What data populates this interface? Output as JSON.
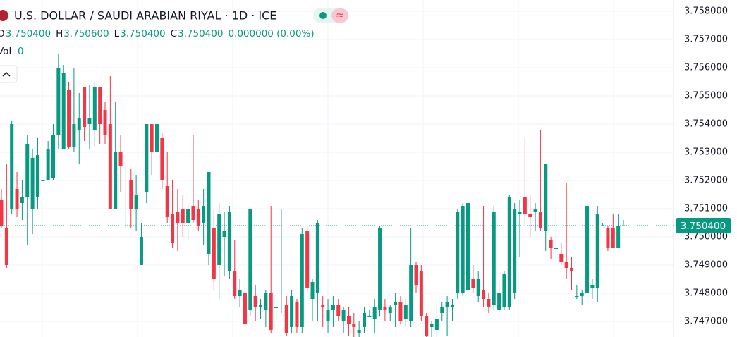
{
  "chart_data": {
    "type": "candlestick",
    "title": "U.S. DOLLAR / SAUDI ARABIAN RIYAL · 1D · ICE",
    "legend": {
      "o_label": "O",
      "open": "3.750400",
      "h_label": "H",
      "high": "3.750600",
      "l_label": "L",
      "low": "3.750400",
      "c_label": "C",
      "close": "3.750400",
      "change": "0.000000 (0.00%)",
      "vol_label": "Vol",
      "vol": "0"
    },
    "up_color": "#089981",
    "down_color": "#f23645",
    "grid": true,
    "price_label": {
      "value": 3.7504,
      "label": "3.750400"
    },
    "ylim": [
      3.7466,
      3.7584
    ],
    "yticks": [
      {
        "value": 3.747,
        "label": "3.747000"
      },
      {
        "value": 3.748,
        "label": "3.748000"
      },
      {
        "value": 3.749,
        "label": "3.749000"
      },
      {
        "value": 3.75,
        "label": "3.750000"
      },
      {
        "value": 3.751,
        "label": "3.751000"
      },
      {
        "value": 3.752,
        "label": "3.752000"
      },
      {
        "value": 3.753,
        "label": "3.753000"
      },
      {
        "value": 3.754,
        "label": "3.754000"
      },
      {
        "value": 3.755,
        "label": "3.755000"
      },
      {
        "value": 3.756,
        "label": "3.756000"
      },
      {
        "value": 3.757,
        "label": "3.757000"
      },
      {
        "value": 3.758,
        "label": "3.758000"
      }
    ],
    "candles": [
      [
        3.7513,
        3.7517,
        3.7503,
        3.7504
      ],
      [
        3.7503,
        3.7526,
        3.7489,
        3.749
      ],
      [
        3.751,
        3.7541,
        3.7508,
        3.754
      ],
      [
        3.7517,
        3.7523,
        3.7507,
        3.751
      ],
      [
        3.7512,
        3.752,
        3.7506,
        3.7514
      ],
      [
        3.7514,
        3.7536,
        3.7497,
        3.7533
      ],
      [
        3.751,
        3.7531,
        3.7501,
        3.7528
      ],
      [
        3.7514,
        3.7535,
        3.751,
        3.7529
      ],
      [
        3.752,
        3.752,
        3.752,
        3.752
      ],
      [
        3.752,
        3.7534,
        3.752,
        3.7531
      ],
      [
        3.7521,
        3.754,
        3.752,
        3.7536
      ],
      [
        3.7536,
        3.7565,
        3.7531,
        3.756
      ],
      [
        3.7531,
        3.7561,
        3.7531,
        3.7558
      ],
      [
        3.7552,
        3.7555,
        3.7531,
        3.7532
      ],
      [
        3.7532,
        3.756,
        3.753,
        3.754
      ],
      [
        3.7538,
        3.7551,
        3.7526,
        3.7542
      ],
      [
        3.7553,
        3.7553,
        3.7534,
        3.7539
      ],
      [
        3.754,
        3.7554,
        3.7531,
        3.7542
      ],
      [
        3.7538,
        3.7555,
        3.7532,
        3.7553
      ],
      [
        3.7553,
        3.7553,
        3.7533,
        3.754
      ],
      [
        3.7545,
        3.7548,
        3.7533,
        3.7536
      ],
      [
        3.754,
        3.7557,
        3.751,
        3.751
      ],
      [
        3.751,
        3.7548,
        3.751,
        3.753
      ],
      [
        3.753,
        3.7536,
        3.7516,
        3.7525
      ],
      [
        3.751,
        3.7525,
        3.7503,
        3.751
      ],
      [
        3.752,
        3.7524,
        3.7503,
        3.751
      ],
      [
        3.751,
        3.7522,
        3.7502,
        3.7515
      ],
      [
        3.749,
        3.7505,
        3.749,
        3.75
      ],
      [
        3.7516,
        3.754,
        3.7512,
        3.754
      ],
      [
        3.754,
        3.754,
        3.7522,
        3.753
      ],
      [
        3.753,
        3.754,
        3.751,
        3.754
      ],
      [
        3.7535,
        3.7537,
        3.7517,
        3.752
      ],
      [
        3.7518,
        3.753,
        3.7505,
        3.7507
      ],
      [
        3.7508,
        3.752,
        3.7496,
        3.7498
      ],
      [
        3.7509,
        3.7517,
        3.7495,
        3.7505
      ],
      [
        3.751,
        3.7515,
        3.75,
        3.7505
      ],
      [
        3.7505,
        3.7512,
        3.7499,
        3.751
      ],
      [
        3.7511,
        3.7536,
        3.7505,
        3.7506
      ],
      [
        3.751,
        3.7513,
        3.7502,
        3.7504
      ],
      [
        3.7505,
        3.7517,
        3.7497,
        3.7511
      ],
      [
        3.7494,
        3.7523,
        3.749,
        3.7523
      ],
      [
        3.7503,
        3.751,
        3.7481,
        3.7485
      ],
      [
        3.749,
        3.7512,
        3.7478,
        3.7508
      ],
      [
        3.75,
        3.7509,
        3.7486,
        3.7502
      ],
      [
        3.7488,
        3.7511,
        3.7485,
        3.7509
      ],
      [
        3.7488,
        3.7499,
        3.7478,
        3.7479
      ],
      [
        3.7479,
        3.7485,
        3.7475,
        3.7481
      ],
      [
        3.748,
        3.7484,
        3.7468,
        3.7469
      ],
      [
        3.7474,
        3.751,
        3.7472,
        3.751
      ],
      [
        3.7479,
        3.7483,
        3.747,
        3.7475
      ],
      [
        3.7475,
        3.7478,
        3.7471,
        3.7476
      ],
      [
        3.7474,
        3.7481,
        3.7468,
        3.748
      ],
      [
        3.748,
        3.7511,
        3.7466,
        3.7467
      ],
      [
        3.7475,
        3.7477,
        3.7471,
        3.7475
      ],
      [
        3.7476,
        3.751,
        3.7473,
        3.7476
      ],
      [
        3.7476,
        3.7479,
        3.7465,
        3.7466
      ],
      [
        3.7468,
        3.7481,
        3.7466,
        3.7479
      ],
      [
        3.7477,
        3.7478,
        3.7466,
        3.7468
      ],
      [
        3.7468,
        3.7503,
        3.7466,
        3.7501
      ],
      [
        3.7502,
        3.7504,
        3.748,
        3.7482
      ],
      [
        3.7478,
        3.7485,
        3.747,
        3.7484
      ],
      [
        3.748,
        3.7506,
        3.747,
        3.7505
      ],
      [
        3.7476,
        3.7479,
        3.7468,
        3.7475
      ],
      [
        3.747,
        3.7478,
        3.7466,
        3.7474
      ],
      [
        3.7474,
        3.7479,
        3.7468,
        3.7476
      ],
      [
        3.7476,
        3.7478,
        3.747,
        3.7472
      ],
      [
        3.747,
        3.7475,
        3.7466,
        3.7474
      ],
      [
        3.7472,
        3.7475,
        3.7465,
        3.7469
      ],
      [
        3.7469,
        3.7473,
        3.7464,
        3.7468
      ],
      [
        3.7466,
        3.747,
        3.7464,
        3.7467
      ],
      [
        3.7468,
        3.7475,
        3.7466,
        3.7473
      ],
      [
        3.7472,
        3.7474,
        3.7472,
        3.7472
      ],
      [
        3.7471,
        3.7478,
        3.7466,
        3.7475
      ],
      [
        3.7474,
        3.7504,
        3.7472,
        3.7503
      ],
      [
        3.7475,
        3.7478,
        3.747,
        3.7474
      ],
      [
        3.7473,
        3.7476,
        3.747,
        3.7475
      ],
      [
        3.7476,
        3.748,
        3.7468,
        3.7477
      ],
      [
        3.7477,
        3.7479,
        3.7469,
        3.747
      ],
      [
        3.7471,
        3.7478,
        3.7468,
        3.7476
      ],
      [
        3.747,
        3.7503,
        3.7468,
        3.749
      ],
      [
        3.749,
        3.7491,
        3.748,
        3.7483
      ],
      [
        3.7488,
        3.749,
        3.747,
        3.7472
      ],
      [
        3.7472,
        3.7473,
        3.7464,
        3.7465
      ],
      [
        3.7468,
        3.747,
        3.7462,
        3.7469
      ],
      [
        3.7467,
        3.7476,
        3.7464,
        3.7471
      ],
      [
        3.7473,
        3.7477,
        3.747,
        3.7475
      ],
      [
        3.7475,
        3.7479,
        3.7465,
        3.7477
      ],
      [
        3.7475,
        3.7478,
        3.747,
        3.7476
      ],
      [
        3.748,
        3.751,
        3.7478,
        3.7509
      ],
      [
        3.748,
        3.7512,
        3.7479,
        3.7511
      ],
      [
        3.7481,
        3.7513,
        3.7479,
        3.7512
      ],
      [
        3.7485,
        3.749,
        3.748,
        3.7482
      ],
      [
        3.7479,
        3.7488,
        3.7477,
        3.7485
      ],
      [
        3.7481,
        3.7511,
        3.7475,
        3.7478
      ],
      [
        3.7478,
        3.748,
        3.7473,
        3.7475
      ],
      [
        3.7476,
        3.7511,
        3.7474,
        3.7509
      ],
      [
        3.7474,
        3.7484,
        3.7473,
        3.748
      ],
      [
        3.7475,
        3.7488,
        3.7474,
        3.7487
      ],
      [
        3.7475,
        3.7515,
        3.7474,
        3.7514
      ],
      [
        3.748,
        3.7512,
        3.7478,
        3.751
      ],
      [
        3.7508,
        3.7513,
        3.7493,
        3.7509
      ],
      [
        3.7514,
        3.7535,
        3.7504,
        3.7508
      ],
      [
        3.7508,
        3.7515,
        3.75,
        3.7507
      ],
      [
        3.7509,
        3.7512,
        3.7502,
        3.751
      ],
      [
        3.7509,
        3.7538,
        3.7502,
        3.7503
      ],
      [
        3.7502,
        3.7526,
        3.7495,
        3.7526
      ],
      [
        3.7499,
        3.75,
        3.7492,
        3.7496
      ],
      [
        3.7496,
        3.7511,
        3.7492,
        3.7496
      ],
      [
        3.7494,
        3.7498,
        3.749,
        3.7491
      ],
      [
        3.7491,
        3.7519,
        3.7485,
        3.7489
      ],
      [
        3.7489,
        3.7493,
        3.7481,
        3.7488
      ],
      [
        3.7479,
        3.7483,
        3.7478,
        3.7479
      ],
      [
        3.7479,
        3.7481,
        3.7476,
        3.748
      ],
      [
        3.748,
        3.7512,
        3.7477,
        3.7511
      ],
      [
        3.7482,
        3.7485,
        3.7478,
        3.7483
      ],
      [
        3.7482,
        3.7511,
        3.7477,
        3.7508
      ],
      [
        3.7504,
        3.7505,
        3.7504,
        3.7504
      ],
      [
        3.7503,
        3.7504,
        3.7495,
        3.7496
      ],
      [
        3.7503,
        3.7508,
        3.7496,
        3.7496
      ],
      [
        3.7496,
        3.7508,
        3.7496,
        3.7504
      ],
      [
        3.7504,
        3.7506,
        3.7504,
        3.7504
      ]
    ]
  }
}
